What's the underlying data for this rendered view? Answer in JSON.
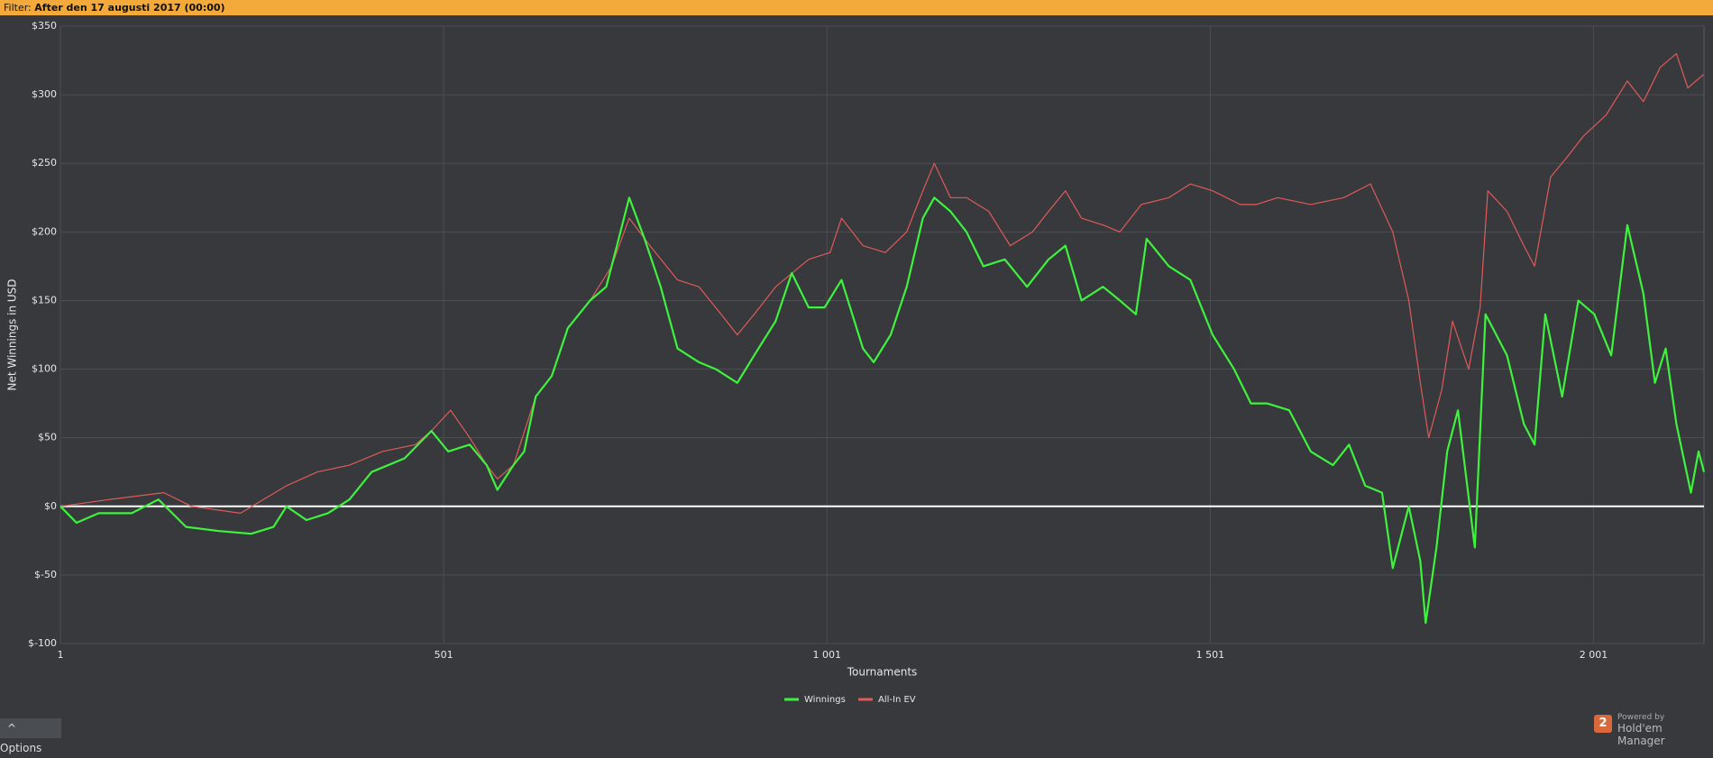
{
  "filter": {
    "label": "Filter:",
    "value": "After den 17 augusti 2017 (00:00)"
  },
  "options": "^  Options",
  "brand": {
    "logo": "2",
    "powered_by": "Powered by",
    "name": "Hold'em Manager"
  },
  "chart_data": {
    "type": "line",
    "xlabel": "Tournaments",
    "ylabel": "Net Winnings in USD",
    "xlim": [
      1,
      2145
    ],
    "ylim": [
      -100,
      350
    ],
    "xticks": [
      1,
      {
        "value": 501,
        "label": "501"
      },
      {
        "value": 1001,
        "label": "1 001"
      },
      {
        "value": 1501,
        "label": "1 501"
      },
      {
        "value": 2001,
        "label": "2 001"
      }
    ],
    "yticks": [
      {
        "value": -100,
        "label": "$-100"
      },
      {
        "value": -50,
        "label": "$-50"
      },
      {
        "value": 0,
        "label": "$0"
      },
      {
        "value": 50,
        "label": "$50"
      },
      {
        "value": 100,
        "label": "$100"
      },
      {
        "value": 150,
        "label": "$150"
      },
      {
        "value": 200,
        "label": "$200"
      },
      {
        "value": 250,
        "label": "$250"
      },
      {
        "value": 300,
        "label": "$300"
      },
      {
        "value": 350,
        "label": "$350"
      }
    ],
    "grid": true,
    "legend": "bottom",
    "series": [
      {
        "name": "Winnings",
        "color": "#3ef23e",
        "width": 2.2,
        "x": [
          1,
          22,
          51,
          94,
          129,
          165,
          208,
          250,
          279,
          296,
          322,
          350,
          378,
          407,
          450,
          485,
          507,
          535,
          557,
          571,
          592,
          606,
          621,
          642,
          663,
          692,
          713,
          727,
          743,
          763,
          784,
          806,
          834,
          856,
          884,
          906,
          934,
          955,
          977,
          998,
          1020,
          1048,
          1062,
          1084,
          1105,
          1126,
          1141,
          1162,
          1183,
          1205,
          1233,
          1262,
          1290,
          1312,
          1333,
          1361,
          1383,
          1404,
          1418,
          1447,
          1475,
          1504,
          1532,
          1554,
          1575,
          1604,
          1632,
          1661,
          1682,
          1703,
          1725,
          1739,
          1760,
          1775,
          1782,
          1796,
          1810,
          1824,
          1846,
          1860,
          1888,
          1910,
          1924,
          1938,
          1960,
          1981,
          2002,
          2024,
          2045,
          2066,
          2081,
          2095,
          2109,
          2128,
          2138,
          2145
        ],
        "values": [
          0,
          -12,
          -5,
          -5,
          5,
          -15,
          -18,
          -20,
          -15,
          0,
          -10,
          -5,
          5,
          25,
          35,
          55,
          40,
          45,
          30,
          12,
          30,
          40,
          80,
          95,
          130,
          150,
          160,
          190,
          225,
          195,
          160,
          115,
          105,
          100,
          90,
          110,
          135,
          170,
          145,
          145,
          165,
          115,
          105,
          125,
          160,
          210,
          225,
          215,
          200,
          175,
          180,
          160,
          180,
          190,
          150,
          160,
          150,
          140,
          195,
          175,
          165,
          125,
          100,
          75,
          75,
          70,
          40,
          30,
          45,
          15,
          10,
          -45,
          0,
          -40,
          -85,
          -30,
          40,
          70,
          -30,
          140,
          110,
          60,
          45,
          140,
          80,
          150,
          140,
          110,
          205,
          155,
          90,
          115,
          60,
          10,
          40,
          25
        ]
      },
      {
        "name": "All-In EV",
        "color": "#e05a5a",
        "width": 1.2,
        "x": [
          1,
          65,
          136,
          172,
          236,
          296,
          336,
          378,
          421,
          464,
          485,
          510,
          535,
          557,
          571,
          592,
          621,
          642,
          663,
          692,
          720,
          743,
          770,
          806,
          834,
          863,
          884,
          906,
          934,
          977,
          1005,
          1020,
          1048,
          1077,
          1105,
          1126,
          1141,
          1162,
          1183,
          1212,
          1240,
          1269,
          1290,
          1312,
          1333,
          1361,
          1383,
          1411,
          1447,
          1475,
          1504,
          1540,
          1561,
          1589,
          1632,
          1675,
          1710,
          1739,
          1760,
          1775,
          1786,
          1803,
          1817,
          1838,
          1853,
          1863,
          1888,
          1910,
          1924,
          1945,
          1967,
          1988,
          2017,
          2045,
          2066,
          2088,
          2109,
          2124,
          2145
        ],
        "values": [
          0,
          5,
          10,
          0,
          -5,
          15,
          25,
          30,
          40,
          45,
          55,
          70,
          50,
          30,
          20,
          30,
          80,
          95,
          130,
          150,
          175,
          210,
          190,
          165,
          160,
          140,
          125,
          140,
          160,
          180,
          185,
          210,
          190,
          185,
          200,
          230,
          250,
          225,
          225,
          215,
          190,
          200,
          215,
          230,
          210,
          205,
          200,
          220,
          225,
          235,
          230,
          220,
          220,
          225,
          220,
          225,
          235,
          200,
          150,
          90,
          50,
          85,
          135,
          100,
          145,
          230,
          215,
          190,
          175,
          240,
          255,
          270,
          285,
          310,
          295,
          320,
          330,
          305,
          315
        ]
      }
    ]
  }
}
